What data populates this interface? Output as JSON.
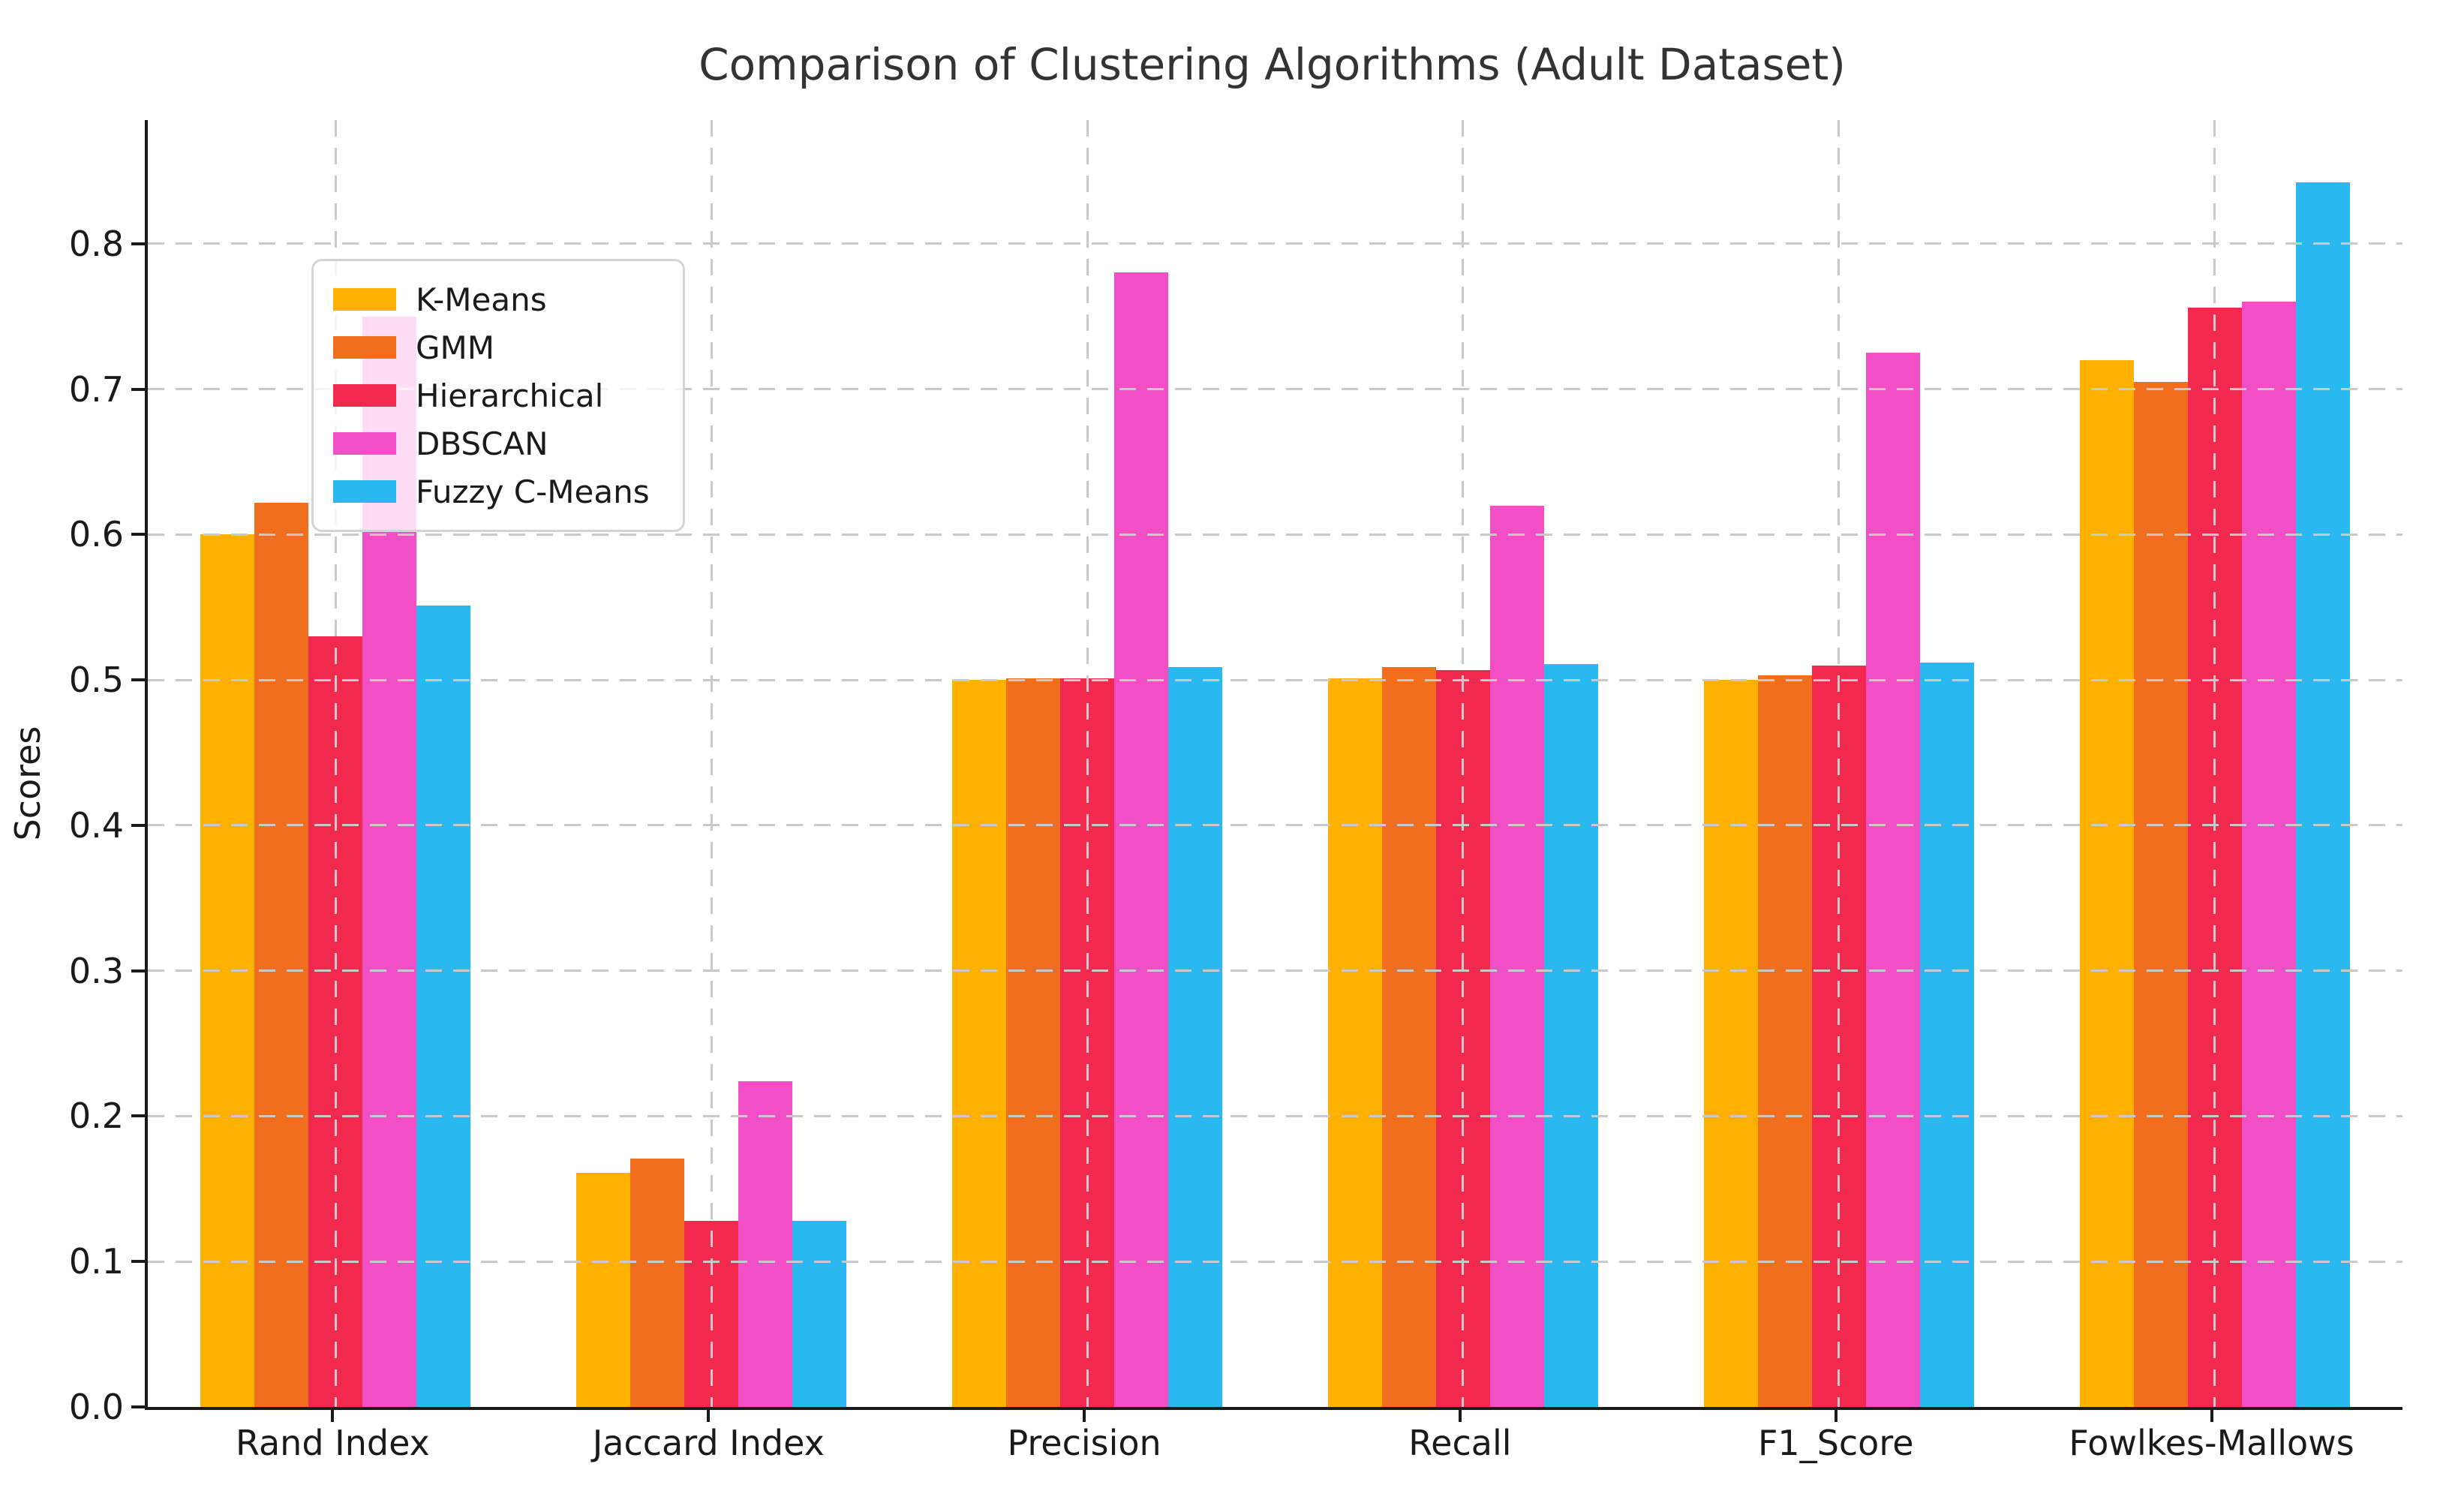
{
  "chart_data": {
    "type": "bar",
    "title": "Comparison of Clustering Algorithms (Adult Dataset)",
    "xlabel": "",
    "ylabel": "Scores",
    "categories": [
      "Rand Index",
      "Jaccard Index",
      "Precision",
      "Recall",
      "F1_Score",
      "Fowlkes-Mallows"
    ],
    "series": [
      {
        "name": "K-Means",
        "color": "#FFB000",
        "values": [
          0.6,
          0.161,
          0.5,
          0.501,
          0.5,
          0.72
        ]
      },
      {
        "name": "GMM",
        "color": "#F06E1E",
        "values": [
          0.622,
          0.171,
          0.501,
          0.509,
          0.503,
          0.705
        ]
      },
      {
        "name": "Hierarchical",
        "color": "#F2294E",
        "values": [
          0.53,
          0.128,
          0.501,
          0.507,
          0.51,
          0.756
        ]
      },
      {
        "name": "DBSCAN",
        "color": "#F24FC6",
        "values": [
          0.75,
          0.224,
          0.78,
          0.62,
          0.725,
          0.76
        ]
      },
      {
        "name": "Fuzzy C-Means",
        "color": "#29B8F0",
        "values": [
          0.551,
          0.128,
          0.509,
          0.511,
          0.512,
          0.842
        ]
      }
    ],
    "ylim": [
      0,
      0.885
    ],
    "yticks": [
      "0.0",
      "0.1",
      "0.2",
      "0.3",
      "0.4",
      "0.5",
      "0.6",
      "0.7",
      "0.8"
    ],
    "grid": true,
    "grid_style": "dashed",
    "legend_position": "upper left",
    "axis_color": "#1a1a1a",
    "grid_color": "#c9c9c9",
    "title_color": "#333333"
  }
}
